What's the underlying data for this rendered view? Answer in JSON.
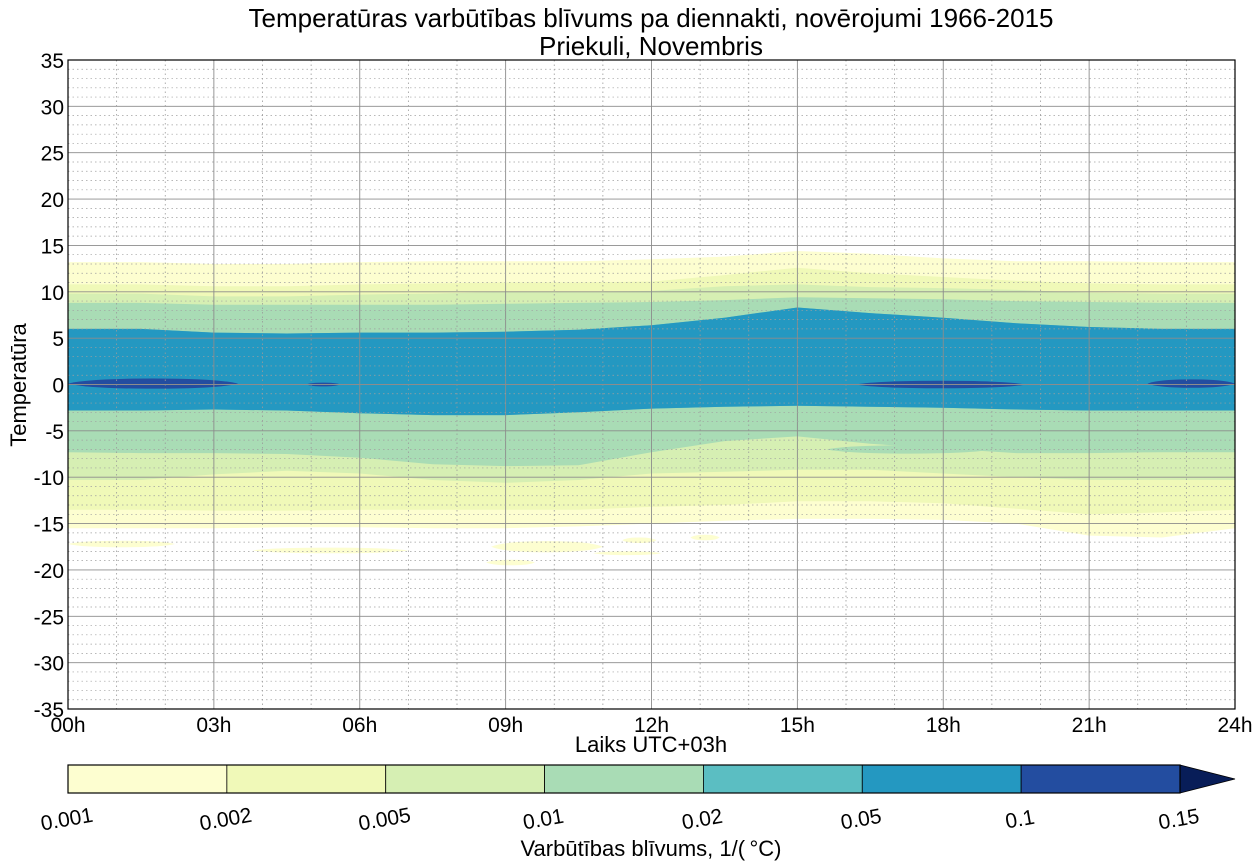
{
  "chart_data": {
    "type": "heatmap",
    "title": "Temperatūras varbūtības blīvums pa diennakti, novērojumi 1966-2015",
    "subtitle": "Priekuli, Novembris",
    "xlabel": "Laiks UTC+03h",
    "ylabel": "Temperatūra",
    "x_ticks": [
      "00h",
      "03h",
      "06h",
      "09h",
      "12h",
      "15h",
      "18h",
      "21h",
      "24h"
    ],
    "x_range": [
      0,
      24
    ],
    "y_ticks": [
      "35",
      "30",
      "25",
      "20",
      "15",
      "10",
      "5",
      "0",
      "-5",
      "-10",
      "-15",
      "-20",
      "-25",
      "-30",
      "-35"
    ],
    "ylim": [
      -35,
      35
    ],
    "grid": true,
    "colorbar": {
      "label": "Varbūtības blīvums, 1/( °C)",
      "ticks": [
        "0.001",
        "0.002",
        "0.005",
        "0.01",
        "0.02",
        "0.05",
        "0.1",
        "0.15"
      ],
      "levels": [
        0.001,
        0.002,
        0.005,
        0.01,
        0.02,
        0.05,
        0.1,
        0.15
      ],
      "colors": [
        "#fdfed0",
        "#f0f9b8",
        "#d6efb3",
        "#a9dcb5",
        "#5bbec2",
        "#2498c1",
        "#234da0",
        "#081d58"
      ],
      "extend": "max"
    },
    "x": [
      0,
      1.5,
      3,
      4.5,
      6,
      7.5,
      9,
      10.5,
      12,
      13.5,
      15,
      16.5,
      18,
      19.5,
      21,
      22.5,
      24
    ],
    "contours": [
      {
        "level": 0.001,
        "upper": [
          13.2,
          13.2,
          13,
          13,
          13.2,
          13.3,
          13.3,
          13.3,
          13.5,
          13.8,
          14.4,
          14.1,
          13.6,
          13.3,
          13.3,
          13.2,
          13.2
        ],
        "lower": [
          -15.5,
          -15.5,
          -15.5,
          -15.4,
          -15.4,
          -15.5,
          -15.5,
          -15.3,
          -15,
          -14.7,
          -14.5,
          -14.5,
          -14.6,
          -15,
          -16.3,
          -16.5,
          -15.5
        ]
      },
      {
        "level": 0.002,
        "upper": [
          10.8,
          10.8,
          10.6,
          10.6,
          10.8,
          10.9,
          11,
          11,
          11.1,
          11.8,
          12.6,
          12,
          11.6,
          11.2,
          10.9,
          10.8,
          10.8
        ],
        "lower": [
          -13.5,
          -13.5,
          -13.6,
          -13.6,
          -13.5,
          -13.5,
          -13.5,
          -13.5,
          -13.2,
          -13,
          -12.6,
          -12.6,
          -12.8,
          -13.4,
          -14,
          -13.8,
          -13.5
        ]
      },
      {
        "level": 0.005,
        "upper": [
          9.8,
          9.8,
          9.5,
          9.5,
          9.7,
          9.8,
          10,
          10,
          10.1,
          10.6,
          10.8,
          10.5,
          10.4,
          10.2,
          9.9,
          9.8,
          9.8
        ],
        "lower": [
          -10.3,
          -10.3,
          -9.7,
          -9.3,
          -9.6,
          -10.3,
          -10.6,
          -10.3,
          -9.6,
          -9.4,
          -9.2,
          -9.2,
          -9.6,
          -10,
          -10.3,
          -10.3,
          -10.3
        ]
      },
      {
        "level": 0.01,
        "upper": [
          8.8,
          8.8,
          8.6,
          8.6,
          8.6,
          8.6,
          8.7,
          8.8,
          8.9,
          9.1,
          9.4,
          9.3,
          9.2,
          9,
          8.9,
          8.8,
          8.8
        ],
        "lower": [
          -7.3,
          -7.4,
          -7.4,
          -7.5,
          -7.9,
          -8.6,
          -8.8,
          -8.7,
          -7.3,
          -6.1,
          -5.6,
          -6.4,
          -6.9,
          -7.4,
          -7.4,
          -7.3,
          -7.3
        ]
      },
      {
        "level": 0.02,
        "upper": [
          6,
          6,
          5.6,
          5.5,
          5.6,
          5.6,
          5.7,
          5.9,
          6.4,
          7.2,
          8.3,
          7.7,
          7.2,
          6.6,
          6.2,
          6,
          6
        ]
      },
      {
        "level": 0.05,
        "upper": [
          6,
          6,
          5.6,
          5.5,
          5.6,
          5.6,
          5.7,
          5.9,
          6.4,
          7.2,
          8.3,
          7.7,
          7.2,
          6.6,
          6.2,
          6,
          6
        ],
        "lower": [
          -2.8,
          -2.8,
          -2.7,
          -2.8,
          -3.1,
          -3.3,
          -3.3,
          -3,
          -2.6,
          -2.4,
          -2.3,
          -2.4,
          -2.5,
          -2.7,
          -2.8,
          -2.8,
          -2.8
        ]
      }
    ],
    "patches": [
      {
        "level": 0.1,
        "x0": 0,
        "x1": 3.5,
        "center": 0.1,
        "half_height": 0.55
      },
      {
        "level": 0.1,
        "x0": 4.9,
        "x1": 5.6,
        "center": 0,
        "half_height": 0.2
      },
      {
        "level": 0.1,
        "x0": 16.2,
        "x1": 19.7,
        "center": 0,
        "half_height": 0.4
      },
      {
        "level": 0.1,
        "x0": 22.2,
        "x1": 24,
        "center": 0.1,
        "half_height": 0.45
      },
      {
        "level": 0.001,
        "x0": 0,
        "x1": 2.2,
        "center": -17.2,
        "half_height": 0.35
      },
      {
        "level": 0.001,
        "x0": 3.8,
        "x1": 7.0,
        "center": -17.9,
        "half_height": 0.3
      },
      {
        "level": 0.001,
        "x0": 8.7,
        "x1": 11.0,
        "center": -17.5,
        "half_height": 0.6
      },
      {
        "level": 0.001,
        "x0": 11.4,
        "x1": 12.1,
        "center": -16.8,
        "half_height": 0.3
      },
      {
        "level": 0.001,
        "x0": 12.8,
        "x1": 13.4,
        "center": -16.5,
        "half_height": 0.3
      },
      {
        "level": 0.001,
        "x0": 10.8,
        "x1": 12.2,
        "center": -18.2,
        "half_height": 0.2
      },
      {
        "level": 0.001,
        "x0": 8.6,
        "x1": 9.6,
        "center": -19.2,
        "half_height": 0.3
      },
      {
        "level": 0.01,
        "x0": 15.6,
        "x1": 19.0,
        "center": -7.0,
        "half_height": 0.45
      }
    ]
  }
}
